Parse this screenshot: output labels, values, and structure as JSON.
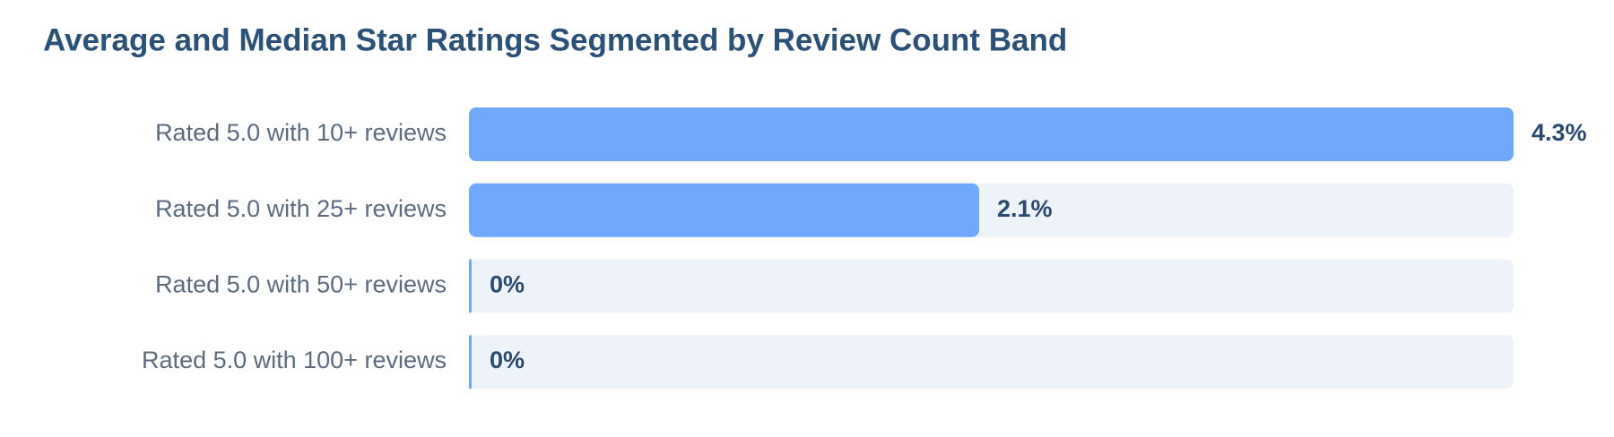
{
  "chart_data": {
    "type": "bar",
    "orientation": "horizontal",
    "title": "Average and Median Star Ratings Segmented by Review Count Band",
    "categories": [
      "Rated 5.0 with 10+ reviews",
      "Rated 5.0 with 25+ reviews",
      "Rated 5.0 with 50+ reviews",
      "Rated 5.0 with 100+ reviews"
    ],
    "values": [
      4.3,
      2.1,
      0,
      0
    ],
    "value_labels": [
      "4.3%",
      "2.1%",
      "0%",
      "0%"
    ],
    "color": "#6fa8fc",
    "track_color": "#eef2f9"
  }
}
